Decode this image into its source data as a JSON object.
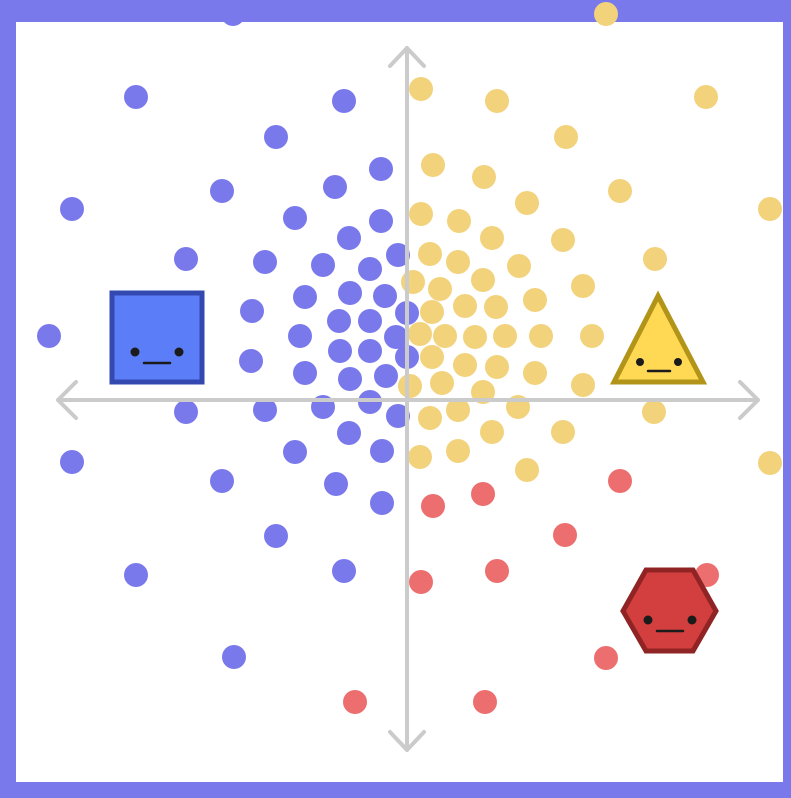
{
  "diagram": {
    "colors": {
      "frame": "#7a79ec",
      "axes": "#cbcbcb",
      "blue_dots": "#7a79ec",
      "yellow_dots": "#f2d27b",
      "red_dots": "#ec6e6e",
      "square_fill": "#5b7df7",
      "square_stroke": "#3349b0",
      "triangle_fill": "#ffd954",
      "triangle_stroke": "#b19418",
      "hexagon_fill": "#d33f3f",
      "hexagon_stroke": "#902424",
      "face": "#1b1b1b"
    },
    "characters": [
      {
        "name": "square-character",
        "shape": "square",
        "expression": "neutral"
      },
      {
        "name": "triangle-character",
        "shape": "triangle",
        "expression": "neutral"
      },
      {
        "name": "hexagon-character",
        "shape": "hexagon",
        "expression": "neutral"
      }
    ],
    "axes": {
      "arrows": "double-headed",
      "orientation": [
        "horizontal",
        "vertical"
      ]
    },
    "dot_groups": [
      {
        "name": "blue-cluster",
        "color_key": "blue_dots"
      },
      {
        "name": "yellow-cluster",
        "color_key": "yellow_dots"
      },
      {
        "name": "red-cluster",
        "color_key": "red_dots"
      }
    ]
  }
}
